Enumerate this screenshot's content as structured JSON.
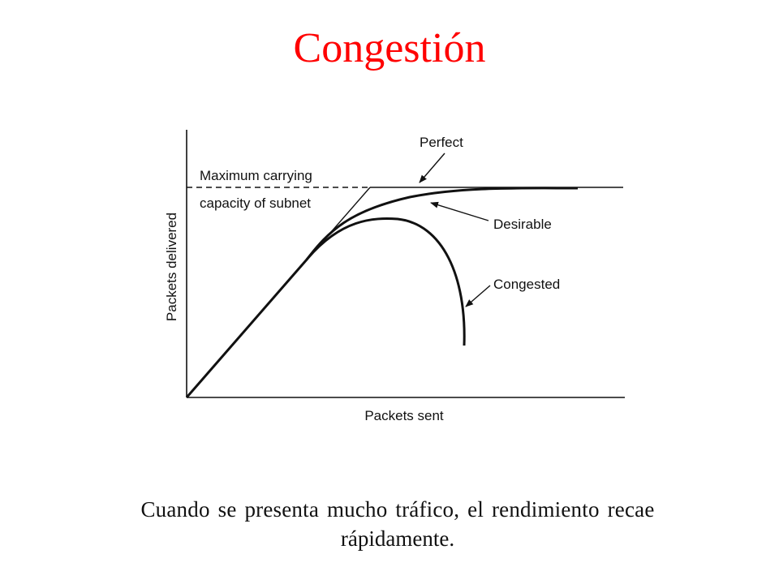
{
  "title": {
    "text": "Congestión",
    "color": "#ff0000"
  },
  "diagram": {
    "y_axis_label": "Packets delivered",
    "x_axis_label": "Packets sent",
    "capacity_label_line1": "Maximum carrying",
    "capacity_label_line2": "capacity of subnet",
    "curve_labels": {
      "perfect": "Perfect",
      "desirable": "Desirable",
      "congested": "Congested"
    }
  },
  "caption": {
    "line1": "Cuando se presenta mucho tráfico, el rendimiento recae",
    "line2": "rápidamente."
  }
}
